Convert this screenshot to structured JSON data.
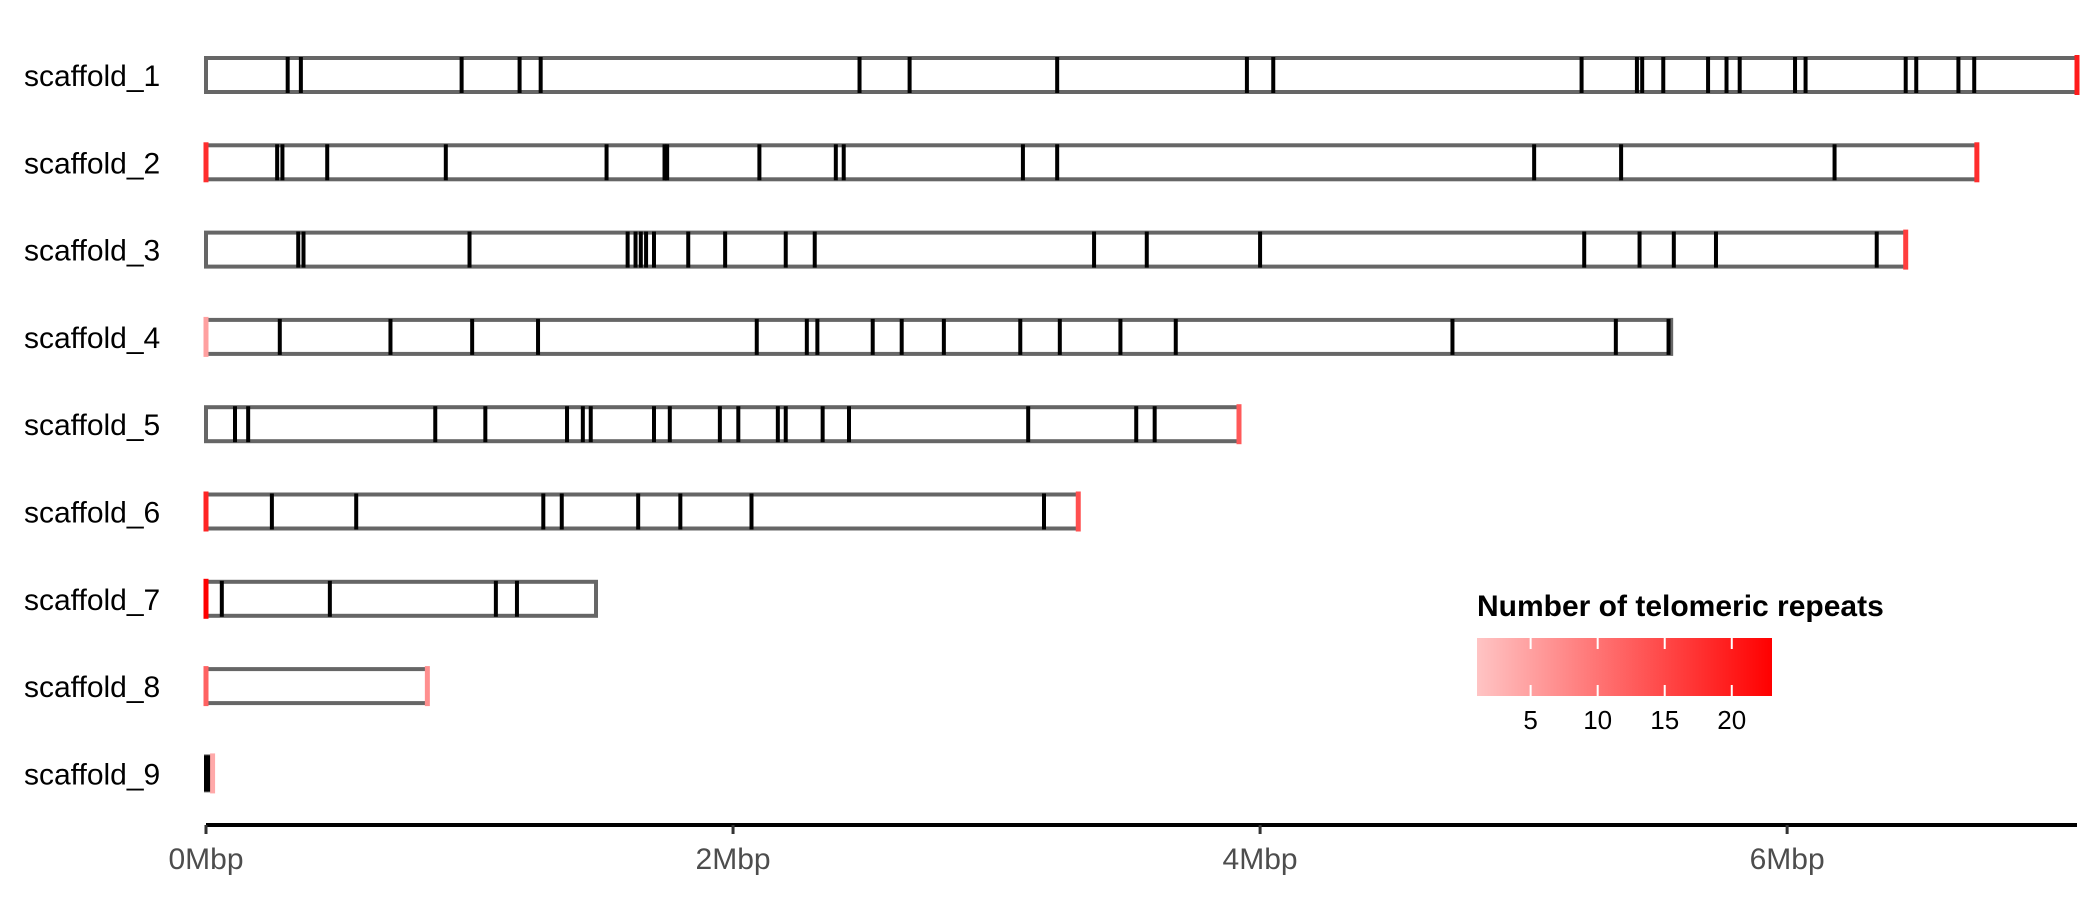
{
  "chart_data": {
    "type": "chromosome-ideogram",
    "title": "",
    "xlabel": "",
    "ylabel": "",
    "x_unit": "Mbp",
    "xlim": [
      0,
      7.1
    ],
    "x_ticks": [
      0,
      2,
      4,
      6
    ],
    "x_tick_labels": [
      "0Mbp",
      "2Mbp",
      "4Mbp",
      "6Mbp"
    ],
    "grid": false,
    "legend": {
      "title": "Number of telomeric repeats",
      "placement": "bottom-right",
      "min": 1,
      "max": 23,
      "color_low": "#ffc4c4",
      "color_high": "#ff0000",
      "ticks": [
        5,
        10,
        15,
        20
      ],
      "tick_labels": [
        "5",
        "10",
        "15",
        "20"
      ]
    },
    "scaffolds": [
      {
        "name": "scaffold_1",
        "length": 7.1,
        "features": [
          0.31,
          0.36,
          0.97,
          1.19,
          1.27,
          2.48,
          2.67,
          3.23,
          3.95,
          4.05,
          5.22,
          5.43,
          5.45,
          5.53,
          5.7,
          5.77,
          5.82,
          6.03,
          6.07,
          6.45,
          6.49,
          6.65,
          6.71
        ],
        "telomeres": [
          {
            "pos": 7.1,
            "count": 20
          }
        ]
      },
      {
        "name": "scaffold_2",
        "length": 6.72,
        "features": [
          0.27,
          0.29,
          0.46,
          0.91,
          1.52,
          1.74,
          1.75,
          2.1,
          2.39,
          2.42,
          3.1,
          3.23,
          5.04,
          5.37,
          6.18
        ],
        "telomeres": [
          {
            "pos": 0.0,
            "count": 18
          },
          {
            "pos": 6.72,
            "count": 18
          }
        ]
      },
      {
        "name": "scaffold_3",
        "length": 6.45,
        "features": [
          0.35,
          0.37,
          1.0,
          1.6,
          1.63,
          1.65,
          1.67,
          1.7,
          1.83,
          1.97,
          2.2,
          2.31,
          3.37,
          3.57,
          4.0,
          5.23,
          5.44,
          5.57,
          5.73,
          6.34
        ],
        "telomeres": [
          {
            "pos": 6.45,
            "count": 16
          }
        ]
      },
      {
        "name": "scaffold_4",
        "length": 5.56,
        "features": [
          0.28,
          0.7,
          1.01,
          1.26,
          2.09,
          2.28,
          2.32,
          2.53,
          2.64,
          2.8,
          3.09,
          3.24,
          3.47,
          3.68,
          4.73,
          5.35,
          5.55
        ],
        "telomeres": [
          {
            "pos": 0.0,
            "count": 5
          }
        ]
      },
      {
        "name": "scaffold_5",
        "length": 3.92,
        "features": [
          0.11,
          0.16,
          0.87,
          1.06,
          1.37,
          1.43,
          1.46,
          1.7,
          1.76,
          1.95,
          2.02,
          2.17,
          2.2,
          2.34,
          2.44,
          3.12,
          3.53,
          3.6
        ],
        "telomeres": [
          {
            "pos": 3.92,
            "count": 13
          }
        ]
      },
      {
        "name": "scaffold_6",
        "length": 3.31,
        "features": [
          0.25,
          0.57,
          1.28,
          1.35,
          1.64,
          1.8,
          2.07,
          3.18
        ],
        "telomeres": [
          {
            "pos": 0.0,
            "count": 19
          },
          {
            "pos": 3.31,
            "count": 14
          }
        ]
      },
      {
        "name": "scaffold_7",
        "length": 1.48,
        "features": [
          0.06,
          0.47,
          1.1,
          1.18
        ],
        "telomeres": [
          {
            "pos": 0.0,
            "count": 23
          }
        ]
      },
      {
        "name": "scaffold_8",
        "length": 0.84,
        "features": [],
        "telomeres": [
          {
            "pos": 0.0,
            "count": 12
          },
          {
            "pos": 0.84,
            "count": 7
          }
        ]
      },
      {
        "name": "scaffold_9",
        "length": 0.025,
        "features": [
          0.0,
          0.01
        ],
        "telomeres": [
          {
            "pos": 0.025,
            "count": 4
          }
        ]
      }
    ]
  }
}
